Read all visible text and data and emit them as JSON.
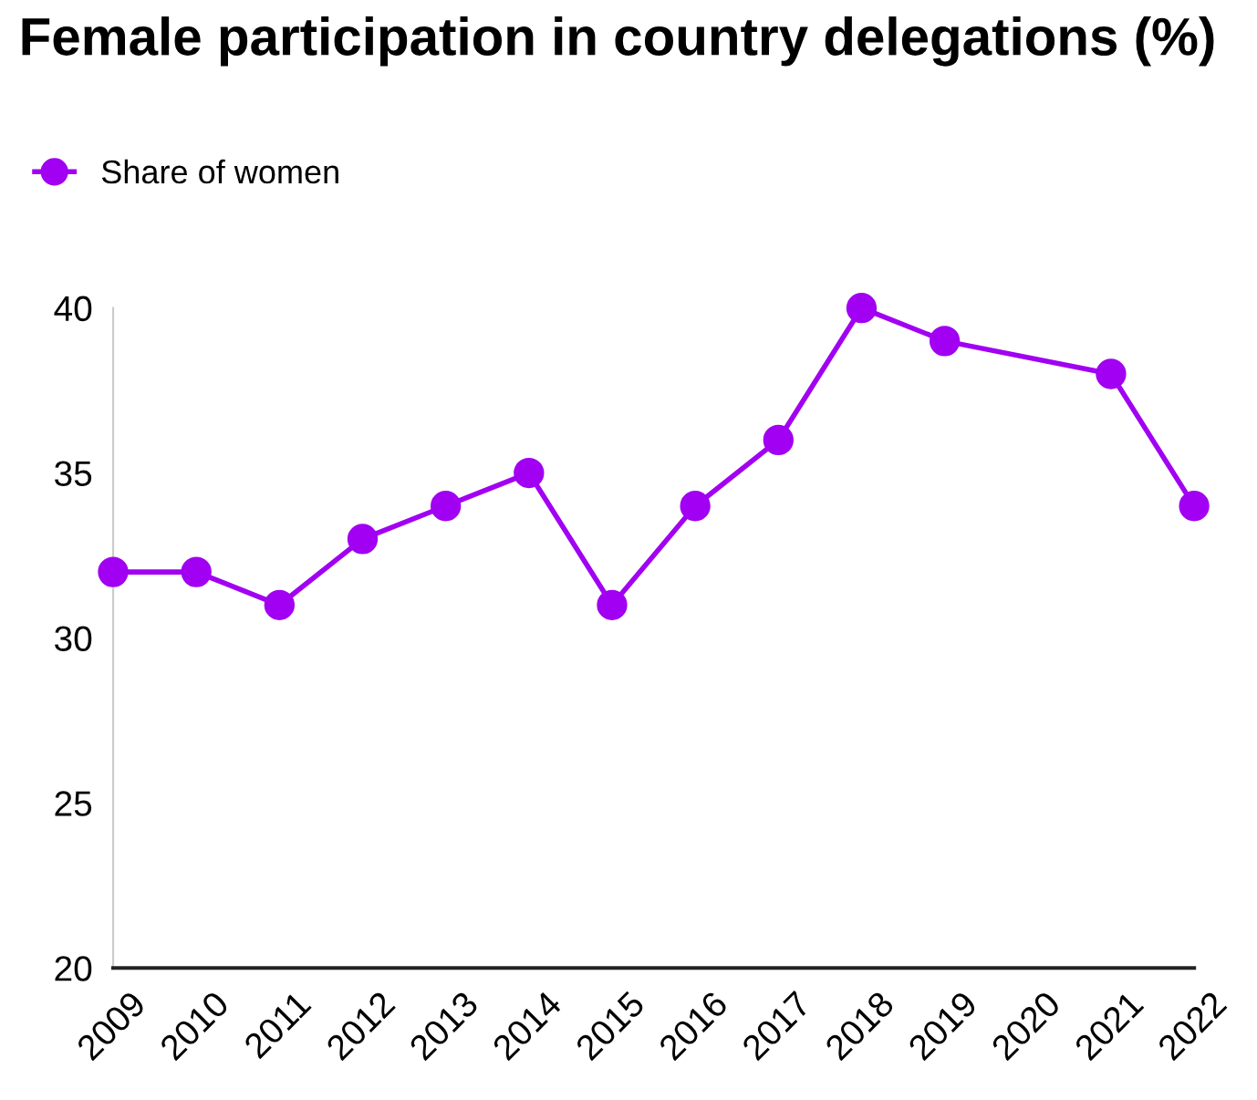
{
  "chart_data": {
    "type": "line",
    "title": "Female participation in country delegations (%)",
    "x": [
      2009,
      2010,
      2011,
      2012,
      2013,
      2014,
      2015,
      2016,
      2017,
      2018,
      2019,
      2021,
      2022
    ],
    "series": [
      {
        "name": "Share of women",
        "color": "#a100f2",
        "values": [
          32,
          32,
          31,
          33,
          34,
          35,
          31,
          34,
          36,
          40,
          39,
          38,
          34
        ]
      }
    ],
    "xlim": [
      2009,
      2022
    ],
    "xticks": [
      2009,
      2010,
      2011,
      2012,
      2013,
      2014,
      2015,
      2016,
      2017,
      2018,
      2019,
      2020,
      2021,
      2022
    ],
    "ylim": [
      20,
      40
    ],
    "yticks": [
      20,
      25,
      30,
      35,
      40
    ],
    "grid": false,
    "legend": "top left",
    "marker": "circle",
    "line_style": "solid"
  }
}
